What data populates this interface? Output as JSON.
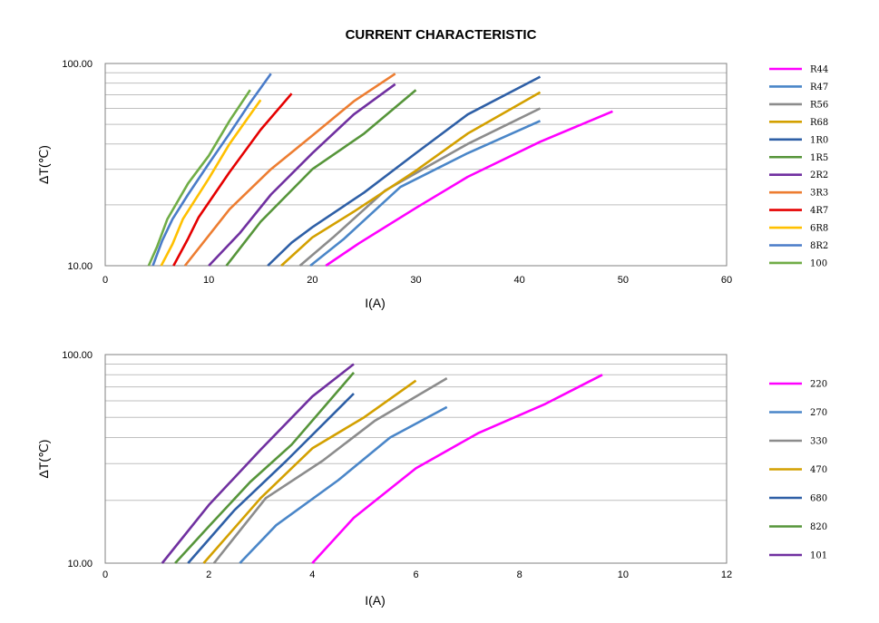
{
  "title": "CURRENT CHARACTERISTIC",
  "chart_data": [
    {
      "type": "line",
      "xlabel": "I(A)",
      "ylabel": "ΔT(℃)",
      "xlim": [
        0,
        60
      ],
      "ylim": [
        10,
        100
      ],
      "y_scale": "log",
      "grid": true,
      "legend_position": "right",
      "xticks": [
        0,
        10,
        20,
        30,
        40,
        50,
        60
      ],
      "ytick_labels": [
        "10.00",
        "100.00"
      ],
      "series": [
        {
          "name": "R44",
          "color": "#ff00ff",
          "x": [
            21.3,
            24.5,
            30,
            35,
            42,
            49
          ],
          "y": [
            10,
            12.9,
            19.3,
            27.5,
            41,
            58
          ]
        },
        {
          "name": "R47",
          "color": "#4a86c8",
          "x": [
            19.8,
            23,
            28.5,
            35,
            42
          ],
          "y": [
            10,
            13.5,
            24.5,
            36,
            52
          ]
        },
        {
          "name": "R56",
          "color": "#8c8c8c",
          "x": [
            18.8,
            22,
            27,
            35,
            42
          ],
          "y": [
            10,
            13.8,
            23.5,
            40,
            60
          ]
        },
        {
          "name": "R68",
          "color": "#d3a000",
          "x": [
            17,
            20,
            24,
            30,
            35,
            42
          ],
          "y": [
            10,
            13.8,
            18.5,
            29.5,
            45,
            72
          ]
        },
        {
          "name": "1R0",
          "color": "#2e5fa6",
          "x": [
            15.7,
            18,
            20,
            25,
            30,
            35,
            42
          ],
          "y": [
            10,
            13,
            15.5,
            23,
            36,
            56,
            86
          ]
        },
        {
          "name": "1R5",
          "color": "#56953a",
          "x": [
            11.7,
            15,
            20,
            25,
            30
          ],
          "y": [
            10,
            16.5,
            30,
            45,
            74
          ]
        },
        {
          "name": "2R2",
          "color": "#7030a0",
          "x": [
            10,
            13,
            16,
            20,
            24,
            28
          ],
          "y": [
            10,
            14.5,
            22.5,
            36,
            56,
            79
          ]
        },
        {
          "name": "3R3",
          "color": "#ed7d31",
          "x": [
            7.7,
            12,
            16,
            20,
            24,
            28
          ],
          "y": [
            10,
            19,
            30,
            44,
            65,
            89
          ]
        },
        {
          "name": "4R7",
          "color": "#e50000",
          "x": [
            6.6,
            8,
            9,
            12,
            15,
            18
          ],
          "y": [
            10,
            13.6,
            17.3,
            29,
            47,
            71
          ]
        },
        {
          "name": "6R8",
          "color": "#ffc000",
          "x": [
            5.4,
            6.5,
            7.5,
            10,
            12,
            15
          ],
          "y": [
            10,
            12.8,
            17,
            27,
            40,
            66
          ]
        },
        {
          "name": "8R2",
          "color": "#4a7cc9",
          "x": [
            4.6,
            5.5,
            6.5,
            8,
            10,
            12,
            14,
            16
          ],
          "y": [
            10,
            13.3,
            17,
            22.5,
            32,
            45,
            64,
            89
          ]
        },
        {
          "name": "100",
          "color": "#70ad47",
          "x": [
            4.2,
            5,
            6,
            8,
            10,
            12,
            14
          ],
          "y": [
            10,
            12.4,
            17,
            25.5,
            35,
            52,
            74
          ]
        }
      ]
    },
    {
      "type": "line",
      "xlabel": "I(A)",
      "ylabel": "ΔT(℃)",
      "xlim": [
        0,
        12
      ],
      "ylim": [
        10,
        100
      ],
      "y_scale": "log",
      "grid": true,
      "legend_position": "right",
      "xticks": [
        0,
        2,
        4,
        6,
        8,
        10,
        12
      ],
      "ytick_labels": [
        "10.00",
        "100.00"
      ],
      "series": [
        {
          "name": "220",
          "color": "#ff00ff",
          "x": [
            4,
            4.8,
            6,
            7.2,
            8.5,
            9.6
          ],
          "y": [
            10,
            16.5,
            28.5,
            42,
            58,
            80
          ]
        },
        {
          "name": "270",
          "color": "#4a86c8",
          "x": [
            2.6,
            3.3,
            4.5,
            5.5,
            6.6
          ],
          "y": [
            10,
            15.2,
            25,
            40,
            56
          ]
        },
        {
          "name": "330",
          "color": "#8c8c8c",
          "x": [
            2.1,
            3.1,
            4.2,
            5.2,
            6.6
          ],
          "y": [
            10,
            20.5,
            31,
            48,
            77
          ]
        },
        {
          "name": "470",
          "color": "#d3a000",
          "x": [
            1.9,
            3,
            4,
            5,
            6
          ],
          "y": [
            10,
            20.5,
            35.5,
            50,
            75
          ]
        },
        {
          "name": "680",
          "color": "#2e5fa6",
          "x": [
            1.6,
            2.5,
            3.5,
            4.8
          ],
          "y": [
            10,
            18,
            31,
            65
          ]
        },
        {
          "name": "820",
          "color": "#56953a",
          "x": [
            1.35,
            2,
            2.8,
            3.6,
            4.8
          ],
          "y": [
            10,
            15,
            24.5,
            37,
            82
          ]
        },
        {
          "name": "101",
          "color": "#7030a0",
          "x": [
            1.1,
            2,
            3,
            4,
            4.8
          ],
          "y": [
            10,
            19,
            35,
            63,
            90
          ]
        }
      ]
    }
  ]
}
